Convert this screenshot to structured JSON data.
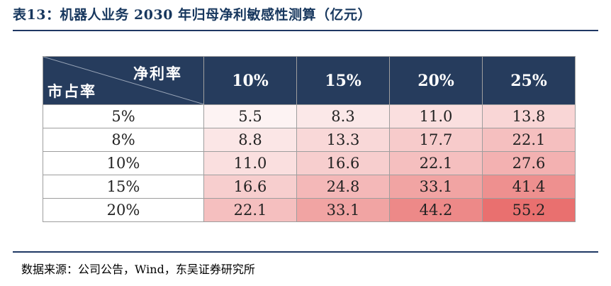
{
  "title": "表13：机器人业务 2030 年归母净利敏感性测算（亿元）",
  "table": {
    "corner_col_label": "净利率",
    "corner_row_label": "市占率",
    "columns": [
      "10%",
      "15%",
      "20%",
      "25%"
    ],
    "rows": [
      {
        "label": "5%",
        "values": [
          "5.5",
          "8.3",
          "11.0",
          "13.8"
        ]
      },
      {
        "label": "8%",
        "values": [
          "8.8",
          "13.3",
          "17.7",
          "22.1"
        ]
      },
      {
        "label": "10%",
        "values": [
          "11.0",
          "16.6",
          "22.1",
          "27.6"
        ]
      },
      {
        "label": "15%",
        "values": [
          "16.6",
          "24.8",
          "33.1",
          "41.4"
        ]
      },
      {
        "label": "20%",
        "values": [
          "22.1",
          "33.1",
          "44.2",
          "55.2"
        ]
      }
    ],
    "heat_colors": {
      "low": "#fdf3f3",
      "high": "#e9706f"
    },
    "header_bg": "#263c5d"
  },
  "source": "数据来源：公司公告，Wind，东吴证券研究所"
}
